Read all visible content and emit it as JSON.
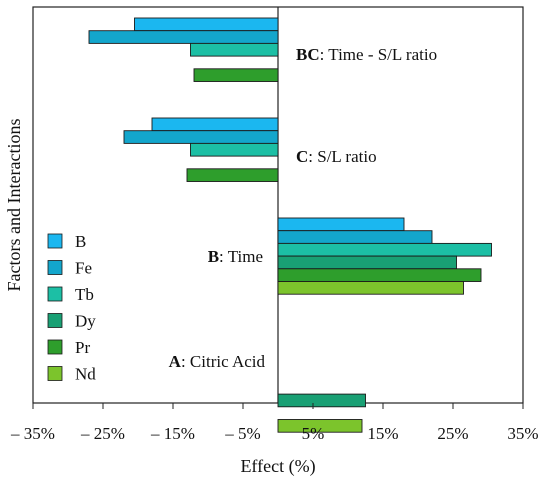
{
  "chart_data": {
    "type": "bar",
    "orientation": "horizontal",
    "xlabel": "Effect (%)",
    "ylabel": "Factors and Interactions",
    "xlim": [
      -35,
      35
    ],
    "xticks": [
      -35,
      -25,
      -15,
      -5,
      5,
      15,
      25,
      35
    ],
    "xtick_labels": [
      "– 35%",
      "– 25%",
      "– 15%",
      "– 5%",
      "5%",
      "15%",
      "25%",
      "35%"
    ],
    "grid": false,
    "legend_position": "left",
    "categories": [
      {
        "key": "BC",
        "bold": "BC",
        "rest": ": Time - S/L ratio"
      },
      {
        "key": "C",
        "bold": "C",
        "rest": ": S/L ratio"
      },
      {
        "key": "B",
        "bold": "B",
        "rest": ": Time"
      },
      {
        "key": "A",
        "bold": "A",
        "rest": ": Citric Acid"
      }
    ],
    "series": [
      {
        "name": "B",
        "color": "#1bb7f0",
        "values": [
          -20.5,
          -18.0,
          18.0,
          null
        ]
      },
      {
        "name": "Fe",
        "color": "#13a6cc",
        "values": [
          -27.0,
          -22.0,
          22.0,
          null
        ]
      },
      {
        "name": "Tb",
        "color": "#1cbfa5",
        "values": [
          -12.5,
          -12.5,
          30.5,
          null
        ]
      },
      {
        "name": "Dy",
        "color": "#19a074",
        "values": [
          null,
          null,
          25.5,
          12.5
        ]
      },
      {
        "name": "Pr",
        "color": "#2e9e2c",
        "values": [
          -12.0,
          -13.0,
          29.0,
          null
        ]
      },
      {
        "name": "Nd",
        "color": "#7cc42c",
        "values": [
          null,
          null,
          26.5,
          12.0
        ]
      }
    ]
  }
}
